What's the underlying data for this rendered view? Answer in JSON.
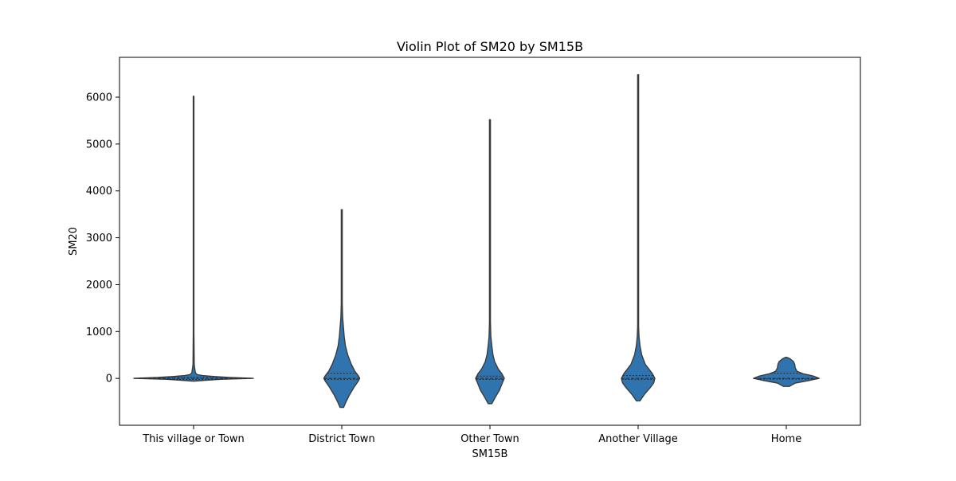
{
  "chart_data": {
    "type": "violin",
    "title": "Violin Plot of SM20 by SM15B",
    "xlabel": "SM15B",
    "ylabel": "SM20",
    "ylim": [
      -1000,
      6850
    ],
    "yticks": [
      0,
      1000,
      2000,
      3000,
      4000,
      5000,
      6000
    ],
    "grid": false,
    "legend": "none",
    "fill_color": "#2f74ae",
    "edge_color": "#3b3b3b",
    "categories": [
      "This village or Town",
      "District Town",
      "Other Town",
      "Another Village",
      "Home"
    ],
    "violins": [
      {
        "category": "This village or Town",
        "min": -60,
        "max": 6020,
        "q1": -20,
        "median": 0,
        "q3": 25,
        "profile": [
          [
            -60,
            0.0
          ],
          [
            -40,
            0.2
          ],
          [
            -20,
            0.45
          ],
          [
            0,
            1.0
          ],
          [
            20,
            0.6
          ],
          [
            40,
            0.35
          ],
          [
            60,
            0.15
          ],
          [
            80,
            0.06
          ],
          [
            120,
            0.03
          ],
          [
            200,
            0.02
          ],
          [
            300,
            0.01
          ],
          [
            1000,
            0.006
          ],
          [
            6020,
            0.006
          ]
        ]
      },
      {
        "category": "District Town",
        "min": -620,
        "max": 3600,
        "q1": -20,
        "median": 0,
        "q3": 110,
        "profile": [
          [
            -620,
            0.03
          ],
          [
            -500,
            0.07
          ],
          [
            -350,
            0.13
          ],
          [
            -200,
            0.2
          ],
          [
            -50,
            0.28
          ],
          [
            0,
            0.3
          ],
          [
            50,
            0.28
          ],
          [
            150,
            0.22
          ],
          [
            300,
            0.16
          ],
          [
            500,
            0.1
          ],
          [
            700,
            0.06
          ],
          [
            900,
            0.04
          ],
          [
            1300,
            0.015
          ],
          [
            1600,
            0.008
          ],
          [
            3600,
            0.008
          ]
        ]
      },
      {
        "category": "Other Town",
        "min": -540,
        "max": 5520,
        "q1": -20,
        "median": 0,
        "q3": 50,
        "profile": [
          [
            -540,
            0.03
          ],
          [
            -400,
            0.09
          ],
          [
            -250,
            0.16
          ],
          [
            -120,
            0.2
          ],
          [
            0,
            0.24
          ],
          [
            100,
            0.2
          ],
          [
            200,
            0.14
          ],
          [
            350,
            0.08
          ],
          [
            500,
            0.05
          ],
          [
            700,
            0.03
          ],
          [
            900,
            0.015
          ],
          [
            1200,
            0.008
          ],
          [
            5520,
            0.008
          ]
        ]
      },
      {
        "category": "Another Village",
        "min": -480,
        "max": 6480,
        "q1": -20,
        "median": 0,
        "q3": 60,
        "profile": [
          [
            -480,
            0.03
          ],
          [
            -350,
            0.1
          ],
          [
            -200,
            0.2
          ],
          [
            -100,
            0.26
          ],
          [
            0,
            0.28
          ],
          [
            100,
            0.24
          ],
          [
            200,
            0.18
          ],
          [
            300,
            0.12
          ],
          [
            500,
            0.06
          ],
          [
            700,
            0.03
          ],
          [
            900,
            0.015
          ],
          [
            1100,
            0.008
          ],
          [
            6480,
            0.008
          ]
        ]
      },
      {
        "category": "Home",
        "min": -170,
        "max": 450,
        "q1": -15,
        "median": 0,
        "q3": 110,
        "profile": [
          [
            -170,
            0.05
          ],
          [
            -100,
            0.15
          ],
          [
            -40,
            0.4
          ],
          [
            0,
            0.55
          ],
          [
            50,
            0.45
          ],
          [
            100,
            0.28
          ],
          [
            150,
            0.18
          ],
          [
            220,
            0.15
          ],
          [
            300,
            0.14
          ],
          [
            360,
            0.12
          ],
          [
            420,
            0.06
          ],
          [
            450,
            0.01
          ]
        ]
      }
    ]
  }
}
